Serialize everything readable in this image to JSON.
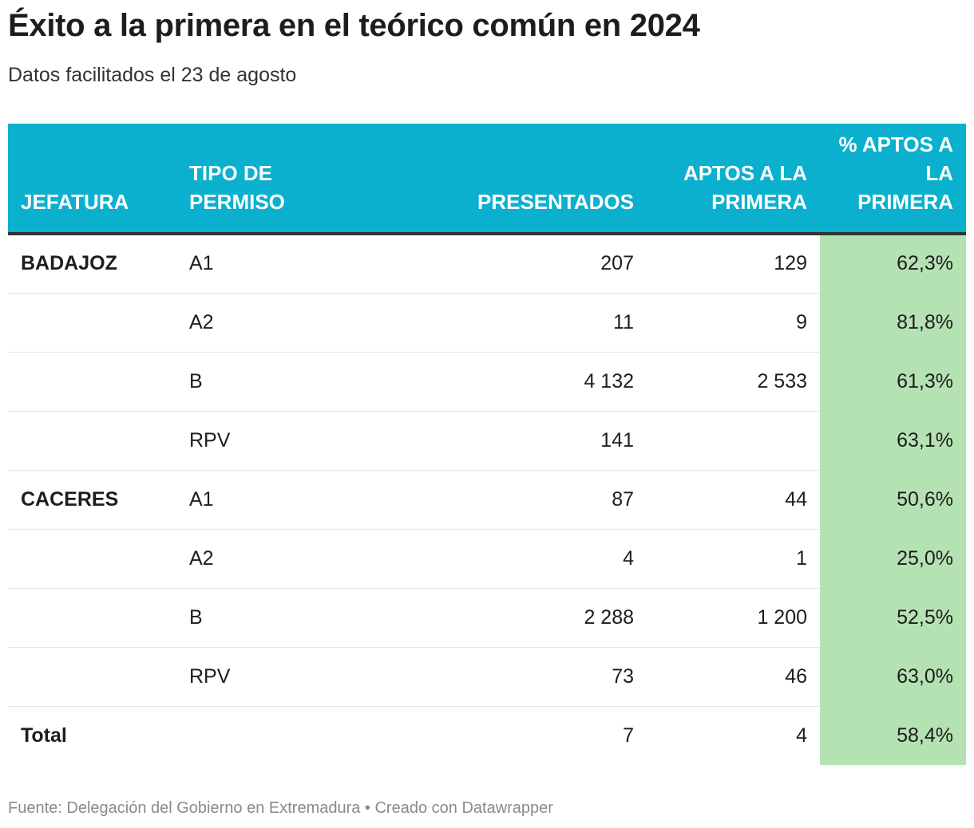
{
  "title": "Éxito a la primera en el teórico común en 2024",
  "subtitle": "Datos facilitados el 23 de agosto",
  "source": "Fuente: Delegación del Gobierno en Extremadura • Creado con Datawrapper",
  "colors": {
    "header": "#0bb0ce",
    "highlight": "#b5e2b3",
    "text": "#1d1d1d"
  },
  "chart_data": {
    "type": "table",
    "columns": [
      "JEFATURA",
      "TIPO DE PERMISO",
      "PRESENTADOS",
      "APTOS A LA PRIMERA",
      "% APTOS A LA PRIMERA"
    ],
    "rows": [
      {
        "jefatura": "BADAJOZ",
        "tipo": "A1",
        "presentados": "207",
        "aptos": "129",
        "pct": "62,3%"
      },
      {
        "jefatura": "",
        "tipo": "A2",
        "presentados": "11",
        "aptos": "9",
        "pct": "81,8%"
      },
      {
        "jefatura": "",
        "tipo": "B",
        "presentados": "4 132",
        "aptos": "2 533",
        "pct": "61,3%"
      },
      {
        "jefatura": "",
        "tipo": "RPV",
        "presentados": "141",
        "aptos": "",
        "pct": "63,1%"
      },
      {
        "jefatura": "CACERES",
        "tipo": "A1",
        "presentados": "87",
        "aptos": "44",
        "pct": "50,6%"
      },
      {
        "jefatura": "",
        "tipo": "A2",
        "presentados": "4",
        "aptos": "1",
        "pct": "25,0%"
      },
      {
        "jefatura": "",
        "tipo": "B",
        "presentados": "2 288",
        "aptos": "1 200",
        "pct": "52,5%"
      },
      {
        "jefatura": "",
        "tipo": "RPV",
        "presentados": "73",
        "aptos": "46",
        "pct": "63,0%"
      },
      {
        "jefatura": "Total",
        "tipo": "",
        "presentados": "7",
        "aptos": "4",
        "pct": "58,4%"
      }
    ]
  }
}
